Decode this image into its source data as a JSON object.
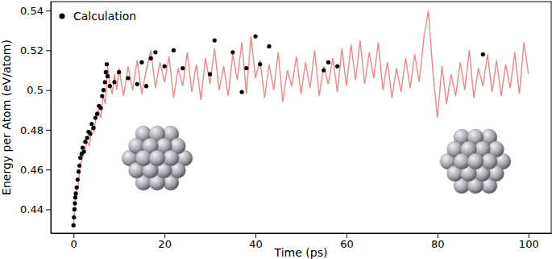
{
  "chart_data": {
    "type": "line",
    "x_label": "Time (ps)",
    "y_label": "Energy per Atom (eV/atom)",
    "xlim": [
      -5,
      105
    ],
    "ylim": [
      0.428,
      0.5445
    ],
    "xticks": [
      0,
      20,
      40,
      60,
      80,
      100
    ],
    "yticks": [
      0.44,
      0.46,
      0.48,
      0.5,
      0.52,
      0.54
    ],
    "legend": "upper left",
    "series": [
      {
        "name": "Calculation",
        "type": "scatter",
        "color": "#000000",
        "marker": "circle",
        "x": [
          0,
          0.1,
          0.2,
          0.3,
          0.4,
          0.5,
          0.7,
          0.9,
          1.1,
          1.3,
          1.5,
          1.8,
          2.0,
          2.3,
          2.6,
          3.0,
          3.3,
          3.7,
          4.0,
          4.4,
          4.8,
          5.2,
          5.6,
          6.0,
          6.3,
          6.6,
          6.9,
          7.1,
          7.3,
          7.5,
          8.0,
          9,
          10,
          12,
          14,
          15,
          16,
          17,
          18,
          20,
          22,
          24,
          30,
          31,
          35,
          37,
          38,
          40,
          41,
          43,
          55,
          56,
          58,
          90
        ],
        "values": [
          0.432,
          0.436,
          0.44,
          0.443,
          0.446,
          0.448,
          0.451,
          0.455,
          0.459,
          0.462,
          0.466,
          0.468,
          0.471,
          0.469,
          0.474,
          0.476,
          0.479,
          0.478,
          0.483,
          0.481,
          0.486,
          0.488,
          0.492,
          0.491,
          0.497,
          0.5,
          0.504,
          0.509,
          0.513,
          0.507,
          0.502,
          0.504,
          0.509,
          0.506,
          0.503,
          0.514,
          0.502,
          0.516,
          0.519,
          0.512,
          0.52,
          0.511,
          0.508,
          0.525,
          0.519,
          0.499,
          0.511,
          0.527,
          0.513,
          0.522,
          0.51,
          0.514,
          0.512,
          0.518
        ]
      },
      {
        "type": "line",
        "color": "#f08080",
        "line_style": "solid",
        "x": [
          0,
          0.5,
          1,
          1.5,
          2,
          2.5,
          3,
          3.5,
          4,
          4.5,
          5,
          5.5,
          6,
          6.5,
          7,
          7.5,
          8,
          8.5,
          9,
          9.5,
          10,
          11,
          12,
          13,
          14,
          15,
          16,
          17,
          18,
          19,
          20,
          21,
          22,
          23,
          24,
          25,
          26,
          27,
          28,
          29,
          30,
          31,
          32,
          33,
          34,
          35,
          36,
          37,
          38,
          39,
          40,
          41,
          42,
          43,
          44,
          45,
          46,
          47,
          48,
          49,
          50,
          51,
          52,
          53,
          54,
          55,
          56,
          57,
          58,
          59,
          60,
          61,
          62,
          63,
          64,
          65,
          66,
          67,
          68,
          69,
          70,
          71,
          72,
          73,
          74,
          75,
          76,
          77,
          78,
          79,
          80,
          81,
          82,
          83,
          84,
          85,
          86,
          87,
          88,
          89,
          90,
          91,
          92,
          93,
          94,
          95,
          96,
          97,
          98,
          99,
          100
        ],
        "values": [
          0.432,
          0.447,
          0.452,
          0.462,
          0.466,
          0.47,
          0.474,
          0.472,
          0.481,
          0.479,
          0.487,
          0.49,
          0.486,
          0.497,
          0.493,
          0.512,
          0.503,
          0.498,
          0.508,
          0.5,
          0.511,
          0.497,
          0.512,
          0.5,
          0.515,
          0.498,
          0.51,
          0.52,
          0.501,
          0.514,
          0.504,
          0.517,
          0.496,
          0.511,
          0.502,
          0.519,
          0.499,
          0.513,
          0.495,
          0.516,
          0.503,
          0.521,
          0.5,
          0.512,
          0.497,
          0.518,
          0.505,
          0.524,
          0.498,
          0.527,
          0.506,
          0.515,
          0.496,
          0.513,
          0.5,
          0.519,
          0.494,
          0.51,
          0.502,
          0.517,
          0.498,
          0.514,
          0.501,
          0.52,
          0.497,
          0.512,
          0.503,
          0.516,
          0.499,
          0.521,
          0.502,
          0.523,
          0.505,
          0.525,
          0.503,
          0.519,
          0.506,
          0.524,
          0.5,
          0.514,
          0.496,
          0.511,
          0.499,
          0.516,
          0.501,
          0.518,
          0.504,
          0.526,
          0.54,
          0.509,
          0.486,
          0.512,
          0.493,
          0.508,
          0.497,
          0.514,
          0.5,
          0.52,
          0.496,
          0.511,
          0.502,
          0.518,
          0.499,
          0.515,
          0.497,
          0.513,
          0.501,
          0.519,
          0.498,
          0.524,
          0.508
        ]
      }
    ]
  }
}
